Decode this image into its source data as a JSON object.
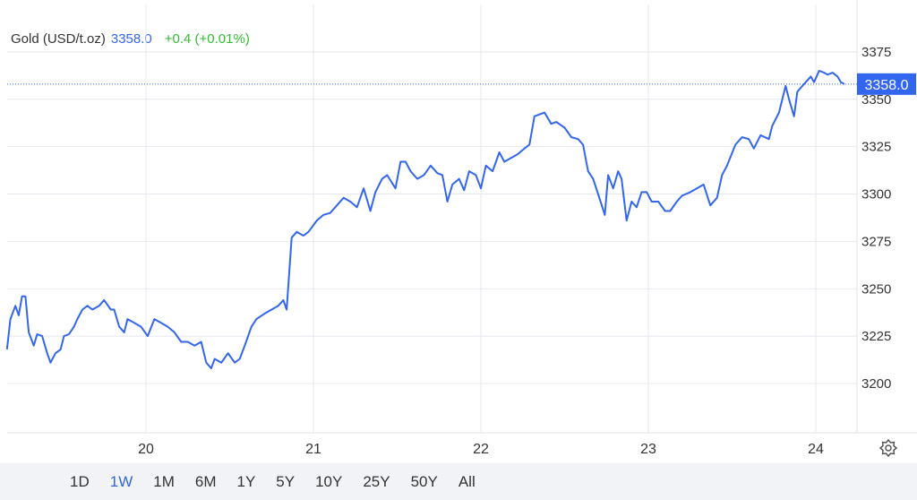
{
  "chart_data": {
    "type": "line",
    "title": "Gold (USD/t.oz)",
    "price": {
      "value": 3358,
      "label": "3358.0"
    },
    "change": "+0.4 (+0.01%)",
    "color": "#3366ee",
    "x": [
      19.17,
      19.19,
      19.22,
      19.24,
      19.26,
      19.28,
      19.3,
      19.33,
      19.35,
      19.38,
      19.41,
      19.43,
      19.46,
      19.49,
      19.51,
      19.54,
      19.57,
      19.59,
      19.62,
      19.65,
      19.68,
      19.72,
      19.75,
      19.79,
      19.81,
      19.84,
      19.87,
      19.89,
      19.93,
      19.97,
      20.01,
      20.05,
      20.09,
      20.13,
      20.17,
      20.21,
      20.25,
      20.29,
      20.33,
      20.36,
      20.39,
      20.41,
      20.45,
      20.49,
      20.53,
      20.56,
      20.59,
      20.63,
      20.66,
      20.71,
      20.75,
      20.79,
      20.82,
      20.84,
      20.87,
      20.9,
      20.94,
      20.97,
      21.02,
      21.06,
      21.1,
      21.14,
      21.18,
      21.22,
      21.26,
      21.3,
      21.34,
      21.37,
      21.41,
      21.44,
      21.49,
      21.52,
      21.55,
      21.58,
      21.62,
      21.66,
      21.7,
      21.74,
      21.77,
      21.8,
      21.83,
      21.87,
      21.9,
      21.93,
      21.97,
      22.0,
      22.03,
      22.07,
      22.11,
      22.14,
      22.18,
      22.22,
      22.26,
      22.29,
      22.32,
      22.35,
      22.38,
      22.42,
      22.45,
      22.5,
      22.54,
      22.58,
      22.61,
      22.64,
      22.67,
      22.7,
      22.74,
      22.76,
      22.79,
      22.82,
      22.84,
      22.87,
      22.9,
      22.93,
      22.96,
      22.99,
      23.02,
      23.06,
      23.1,
      23.13,
      23.17,
      23.2,
      23.25,
      23.29,
      23.33,
      23.37,
      23.41,
      23.44,
      23.47,
      23.52,
      23.56,
      23.6,
      23.63,
      23.67,
      23.72,
      23.74,
      23.78,
      23.8,
      23.82,
      23.84,
      23.87,
      23.89,
      23.92,
      23.94,
      23.97,
      23.99,
      24.02,
      24.05,
      24.07,
      24.1,
      24.13,
      24.15,
      24.17
    ],
    "values": [
      3218,
      3234,
      3241,
      3236,
      3246,
      3246,
      3227,
      3220,
      3226,
      3225,
      3216,
      3211,
      3216,
      3218,
      3225,
      3226,
      3230,
      3234,
      3239,
      3241,
      3239,
      3241,
      3244,
      3239,
      3239,
      3230,
      3227,
      3234,
      3232,
      3230,
      3225,
      3234,
      3232,
      3230,
      3227,
      3222,
      3222,
      3220,
      3222,
      3211,
      3208,
      3213,
      3211,
      3216,
      3211,
      3213,
      3220,
      3230,
      3234,
      3237,
      3239,
      3241,
      3244,
      3239,
      3277,
      3280,
      3278,
      3280,
      3286,
      3289,
      3290,
      3294,
      3298,
      3296,
      3293,
      3303,
      3291,
      3301,
      3308,
      3310,
      3303,
      3317,
      3317,
      3312,
      3308,
      3310,
      3315,
      3311,
      3310,
      3296,
      3305,
      3308,
      3302,
      3312,
      3310,
      3303,
      3315,
      3312,
      3322,
      3317,
      3319,
      3321,
      3324,
      3326,
      3341,
      3342,
      3343,
      3337,
      3338,
      3335,
      3330,
      3329,
      3326,
      3312,
      3308,
      3300,
      3289,
      3310,
      3303,
      3312,
      3308,
      3286,
      3296,
      3293,
      3301,
      3301,
      3296,
      3296,
      3291,
      3291,
      3296,
      3299,
      3301,
      3303,
      3305,
      3294,
      3298,
      3310,
      3315,
      3326,
      3330,
      3329,
      3324,
      3331,
      3329,
      3336,
      3343,
      3350,
      3357,
      3350,
      3341,
      3354,
      3357,
      3359,
      3362,
      3359,
      3365,
      3364,
      3363,
      3364,
      3362,
      3359,
      3358
    ],
    "xlim": [
      19.171,
      24.246
    ],
    "xticks": [
      20,
      21,
      22,
      23,
      24
    ],
    "ylim": [
      3174,
      3400
    ],
    "yticks": [
      3200,
      3225,
      3250,
      3275,
      3300,
      3325,
      3350,
      3375
    ],
    "grid": true,
    "ranges": [
      "1D",
      "1W",
      "1M",
      "6M",
      "1Y",
      "5Y",
      "10Y",
      "25Y",
      "50Y",
      "All"
    ],
    "selected_range": "1W"
  }
}
